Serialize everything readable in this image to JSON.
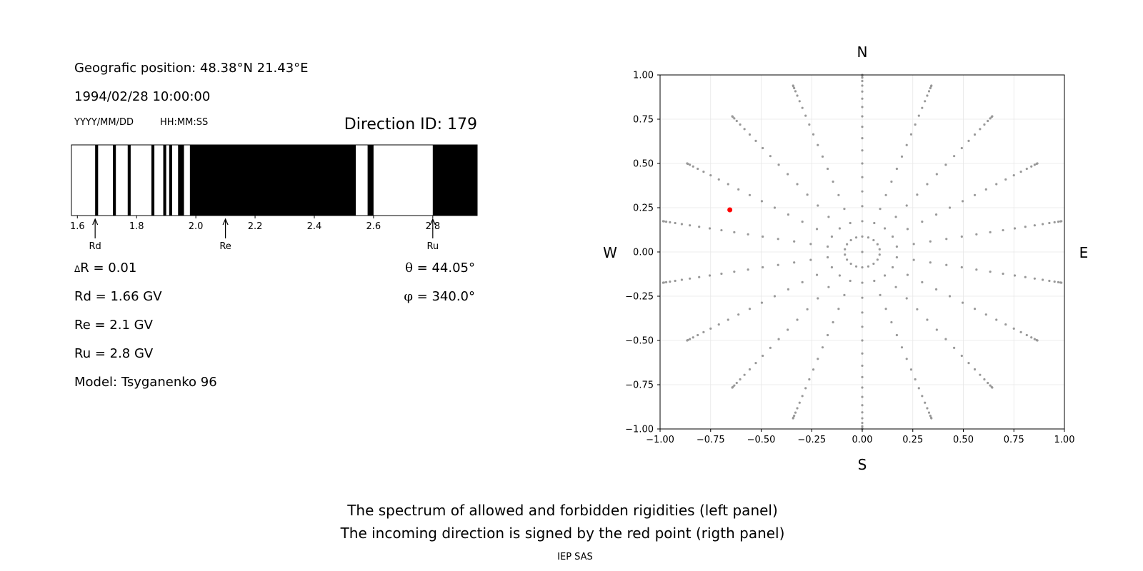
{
  "info": {
    "position": "Geografic position: 48.38°N 21.43°E",
    "datetime": "1994/02/28 10:00:00",
    "date_format": "YYYY/MM/DD",
    "time_format": "HH:MM:SS",
    "direction_id": "Direction ID: 179",
    "delta_r_symbol": "Δ",
    "delta_r": "R = 0.01",
    "rd": "Rd = 1.66 GV",
    "re": "Re = 2.1 GV",
    "ru": "Ru = 2.8 GV",
    "model": "Model: Tsyganenko 96",
    "theta_symbol": "θ",
    "theta": " = 44.05°",
    "phi_symbol": "φ",
    "phi": " = 340.0°"
  },
  "chart_data": [
    {
      "type": "bar",
      "panel": "rigidity spectrum",
      "xlim": [
        1.58,
        2.95
      ],
      "xticks": [
        "1.6",
        "1.8",
        "2.0",
        "2.2",
        "2.4",
        "2.6",
        "2.8"
      ],
      "forbidden_intervals": [
        [
          1.66,
          1.67
        ],
        [
          1.72,
          1.73
        ],
        [
          1.77,
          1.78
        ],
        [
          1.85,
          1.86
        ],
        [
          1.89,
          1.9
        ],
        [
          1.91,
          1.92
        ],
        [
          1.94,
          1.96
        ],
        [
          1.98,
          2.54
        ],
        [
          2.58,
          2.6
        ],
        [
          2.8,
          2.95
        ]
      ],
      "markers": [
        {
          "label": "Rd",
          "value": 1.66
        },
        {
          "label": "Re",
          "value": 2.1
        },
        {
          "label": "Ru",
          "value": 2.8
        }
      ]
    },
    {
      "type": "scatter",
      "panel": "incoming directions",
      "xlim": [
        -1.0,
        1.0
      ],
      "ylim": [
        -1.0,
        1.0
      ],
      "xticks": [
        "−1.00",
        "−0.75",
        "−0.50",
        "−0.25",
        "0.00",
        "0.25",
        "0.50",
        "0.75",
        "1.00"
      ],
      "yticks": [
        "1.00",
        "0.75",
        "0.50",
        "0.25",
        "0.00",
        "−0.25",
        "−0.50",
        "−0.75",
        "−1.00"
      ],
      "grid": true,
      "compass": {
        "top": "N",
        "bottom": "S",
        "left": "W",
        "right": "E"
      },
      "grid_points": {
        "theta_deg_step": 5,
        "theta_deg_max": 90,
        "phi_deg_step": 20,
        "color": "#999999"
      },
      "highlight": {
        "x": -0.655,
        "y": 0.238,
        "color": "#ff0000"
      }
    }
  ],
  "caption": {
    "line1": "The spectrum of allowed and forbidden rigidities (left panel)",
    "line2": "The incoming direction is signed by the red point (rigth panel)",
    "credit": "IEP SAS"
  }
}
